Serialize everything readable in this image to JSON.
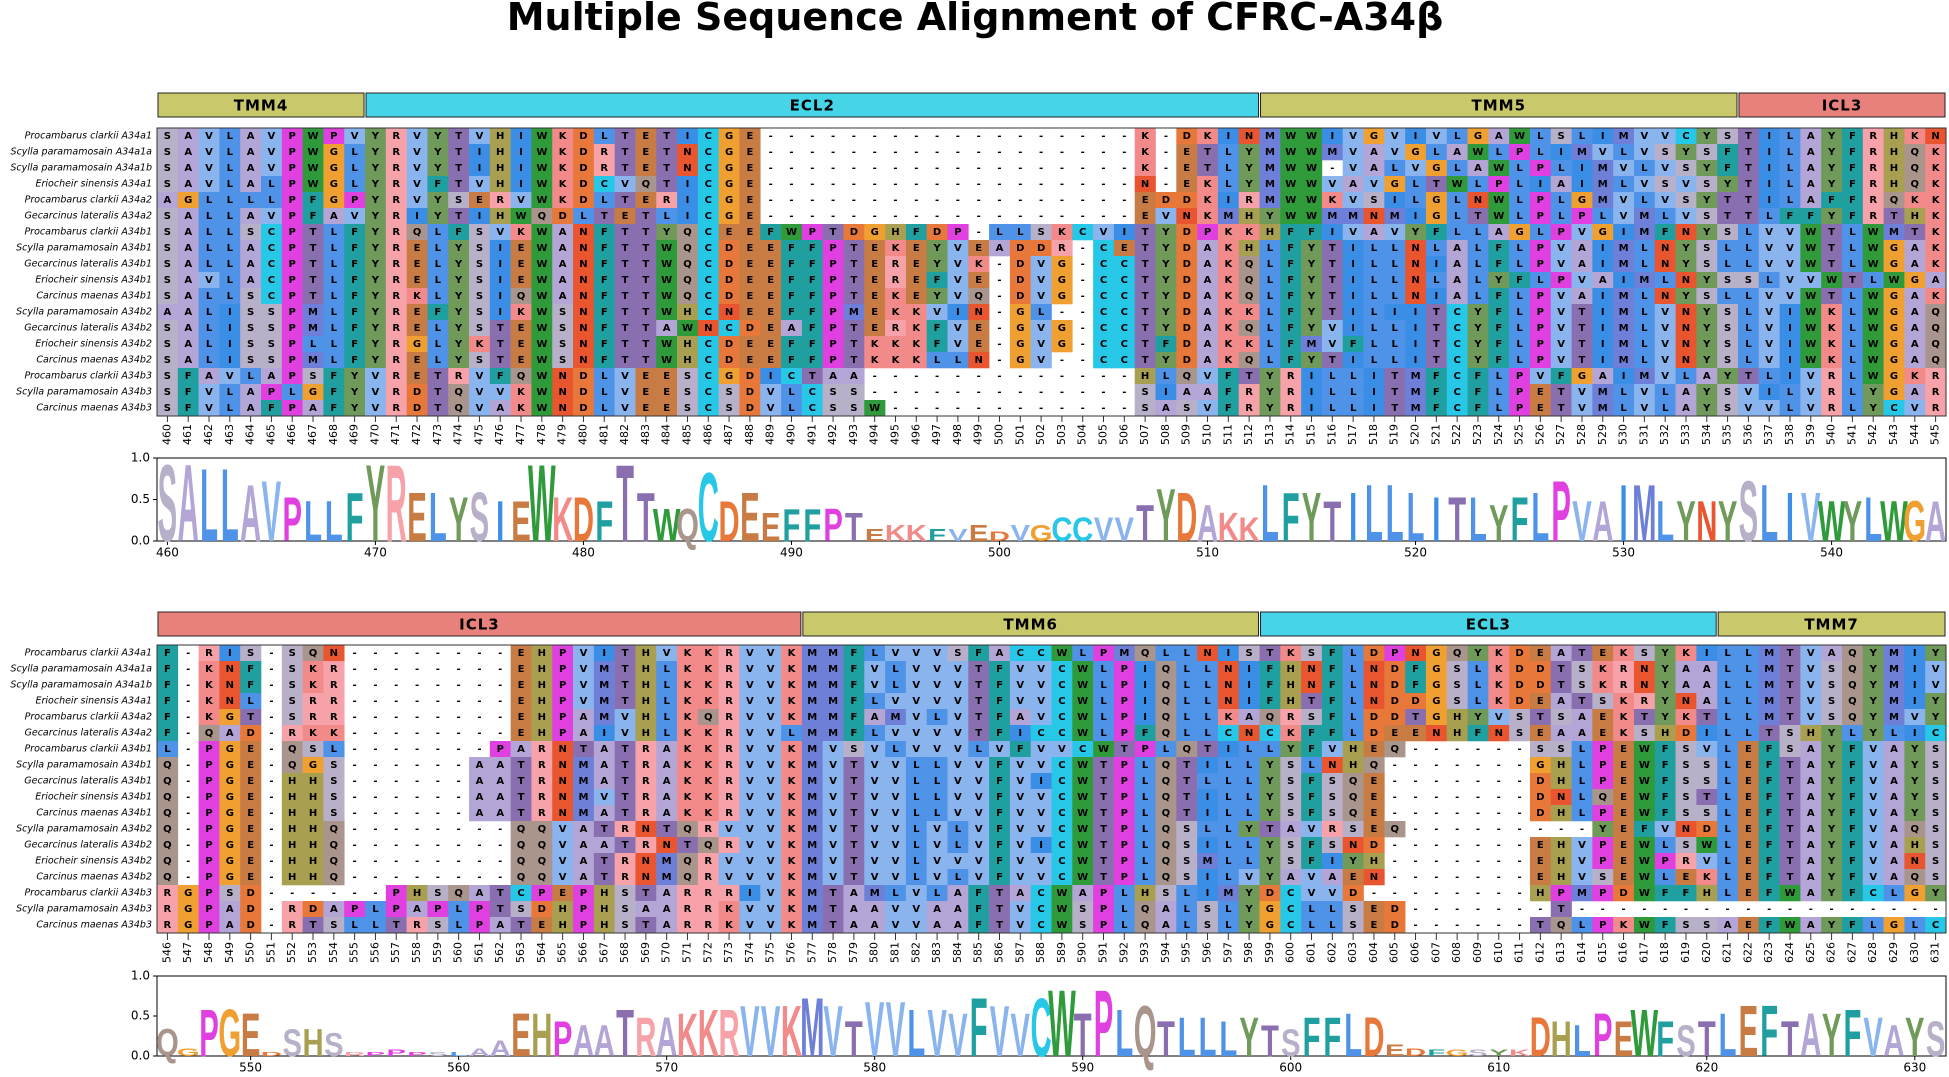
{
  "title": "Multiple Sequence Alignment of CFRC-A34β",
  "sequence_names": [
    "Procambarus clarkii A34a1",
    "Scylla paramamosain A34a1a",
    "Scylla paramamosain A34a1b",
    "Eriocheir sinensis A34a1",
    "Procambarus clarkii A34a2",
    "Gecarcinus lateralis A34a2",
    "Procambarus clarkii A34b1",
    "Scylla paramamosain A34b1",
    "Gecarcinus lateralis A34b1",
    "Eriocheir sinensis A34b1",
    "Carcinus maenas A34b1",
    "Scylla paramamosain A34b2",
    "Gecarcinus lateralis A34b2",
    "Eriocheir sinensis A34b2",
    "Carcinus maenas A34b2",
    "Procambarus clarkii A34b3",
    "Scylla paramamosain A34b3",
    "Carcinus maenas A34b3"
  ],
  "residue_colors": {
    "A": "#b3a6d6",
    "R": "#f7a1a8",
    "N": "#e8552e",
    "D": "#e8783a",
    "C": "#27c7e8",
    "Q": "#a9958c",
    "E": "#c97b44",
    "G": "#f0a030",
    "H": "#a8a050",
    "I": "#3a8ee6",
    "L": "#4f93e8",
    "K": "#f28a8a",
    "M": "#6e7fd8",
    "F": "#1f9f9f",
    "P": "#e040e0",
    "S": "#b8b0c8",
    "T": "#8a6fb0",
    "W": "#2f9a3a",
    "Y": "#6f9a5a",
    "V": "#8ab4ee"
  },
  "panels": [
    {
      "regions": [
        {
          "label": "TMM4",
          "start": 460,
          "end": 469,
          "color": "#c9c86a"
        },
        {
          "label": "ECL2",
          "start": 470,
          "end": 512,
          "color": "#45d4e8"
        },
        {
          "label": "TMM5",
          "start": 513,
          "end": 535,
          "color": "#c9c86a"
        },
        {
          "label": "ICL3",
          "start": 536,
          "end": 545,
          "color": "#e8807c"
        }
      ],
      "positions": [
        460,
        461,
        462,
        463,
        464,
        465,
        466,
        467,
        468,
        469,
        470,
        471,
        472,
        473,
        474,
        475,
        476,
        477,
        478,
        479,
        480,
        481,
        482,
        483,
        484,
        485,
        486,
        487,
        488,
        489,
        490,
        491,
        492,
        493,
        494,
        495,
        496,
        497,
        498,
        499,
        500,
        501,
        502,
        503,
        504,
        505,
        506,
        507,
        508,
        509,
        510,
        511,
        512,
        513,
        514,
        515,
        516,
        517,
        518,
        519,
        520,
        521,
        522,
        523,
        524,
        525,
        526,
        527,
        528,
        529,
        530,
        531,
        532,
        533,
        534,
        535,
        536,
        537,
        538,
        539,
        540,
        541,
        542,
        543,
        544,
        545
      ],
      "rows": [
        "SAVLAVPWPVYRVYTVHIWKDLTETICGE------------------K-DKINMWWIVGVIVLGAWLSLIMVVCYSTILAYFRHKN",
        "SAVLAVPWGLYRVYTIHIWKDRTETNCGE------------------K-ETLYMWWMVAVGLAWLPLIMVLVSYSFTILAYFRHQK",
        "SAVLAVPWGLYRVYTIHIWKDRTETNCGE------------------K-ETLYMWW-VALVGLAWLPLIMVLVSYFTILAYFRHQK",
        "SAVLALPWGLYRVFTVHIWKDCVQTICGE------------------N-EKLYMWWVAVGLTWLPLIAIMLVSVSYTILAYFRHQK",
        "AGLLLLPFGPYRVYSERVWKDLTERICGE------------------EDDKIRMWWKVSILGLNWLPLGMVLVSYTTILAFFRQKK",
        "SALLAVPFAVYRIYTIHWQDLTETLICGE------------------EVNKMHYWWMMNMIGLTWLPLPLVMLVSTTLFFYFRTHK",
        "SALLSCPTLFYRQLFSVKWANFTTYQCEEFWPTDGHFDP-LLSKCVITYDPKKHFFIVAVYFLLAGLPVGIMFNYSLVVWTLWMTK",
        "SALLACPTLFYRELYSIEWANFTTWQCDEEFFPTEKEYVEADDR-CETYDAKHLFYTILLNLALFLPVAIMLNYSLLVVWTLWGAK",
        "SALLACPTLFYRELYSIEWANFTTWQCDEEFFPTEREYVK-DVG-CCTYDAKQLFYTILLNIALFLPVAIMLNYSLLVVWTLWGAK",
        "SAVLACPTLFYRELYSIEWANFTTWQCDEEFFPTEREFVE-DVG-CCTYDAKQLFYTILLNLALYFLPVAIMLNYSSLVVWTLWGA",
        "SALLSCPTLFYRKLYSIQWANFTTWQCDEEFFPTEKEYVQ-DVG-CCTYDAKQLFYTILLNIALFLPVAIMLNYSLLVVWTLWGAK",
        "AALISSPMLFYREFYSIKWSNFTTWHCNEEFFPMEKKVIN-GL--CCTYDAKKLFYTILIITCYFLPVTIMLVNYSLVIWKLWGAQ",
        "SALISSPMLFYRELYSTEWSNFTTAWNCDEAFPTERKFVE-GVG-CCTYDAKQLFYVILLITCYFLPVTIMLVNYSLVIWKLWGAQ",
        "SALISSPLLFYRGLYKTEWSNFTTWHCDEEFFPTKKKFVE-GVG-CCTFDAKKLFMVFLLITCYFLPVTIMLVNYSLVIWKLWGAQ",
        "SALISSPMLFYRELYSTEWSNFTTWHCDEEFFPTKKKLLN-GV--CCTYDAKQLFYTILLITCYFLPVTIMLVNYSLVIWKLWGAQ",
        "SFAVLAPSFYVRETRVFQWNDLVEESCGDICTAA-------------HLQVFTYRILLITMFCFLPVFGAIMVLAYTLIVRLWGKR",
        "SFVLAPLGFYVRDTQVVKWNDLVEESCSDVLCSS-------------SIAAFRYRILLITMFCFLPETVMLVLAYSVILVRLYGAR",
        "SFVLAFPAFYVRDTQVAKWNDLVEESCSDVLCSSW------------SASVFRYRILLITMFCFLPETVMLVLAYSVVLVRLYCVR"
      ],
      "logo": {
        "ylim": [
          0,
          1
        ],
        "yticks": [
          {
            "value": 0,
            "label": "0.0"
          },
          0.5,
          {
            "value": 1,
            "label": "1.0"
          }
        ],
        "xticks": [
          460,
          470,
          480,
          490,
          500,
          510,
          520,
          530,
          540
        ],
        "letters": [
          "S",
          "A",
          "L",
          "L",
          "A",
          "V",
          "P",
          "L",
          "L",
          "F",
          "Y",
          "R",
          "E",
          "L",
          "Y",
          "S",
          "I",
          "E",
          "W",
          "K",
          "D",
          "F",
          "T",
          "T",
          "W",
          "Q",
          "C",
          "D",
          "E",
          "E",
          "F",
          "F",
          "P",
          "T",
          "E",
          "K",
          "K",
          "F",
          "V",
          "E",
          "D",
          "V",
          "G",
          "C",
          "C",
          "V",
          "V",
          "T",
          "Y",
          "D",
          "A",
          "K",
          "K",
          "L",
          "F",
          "Y",
          "T",
          "I",
          "L",
          "L",
          "L",
          "I",
          "T",
          "L",
          "Y",
          "F",
          "L",
          "P",
          "V",
          "A",
          "I",
          "M",
          "L",
          "Y",
          "N",
          "Y",
          "S",
          "L",
          "I",
          "V",
          "W",
          "Y",
          "L",
          "W",
          "G",
          "A"
        ],
        "heights": [
          0.95,
          0.95,
          0.9,
          0.9,
          0.7,
          0.75,
          0.55,
          0.5,
          0.5,
          0.6,
          0.95,
          0.95,
          0.6,
          0.6,
          0.55,
          0.6,
          0.5,
          0.5,
          0.95,
          0.55,
          0.55,
          0.5,
          0.95,
          0.6,
          0.4,
          0.4,
          0.85,
          0.5,
          0.6,
          0.35,
          0.4,
          0.4,
          0.4,
          0.35,
          0.15,
          0.2,
          0.2,
          0.15,
          0.15,
          0.2,
          0.12,
          0.2,
          0.2,
          0.3,
          0.3,
          0.3,
          0.3,
          0.45,
          0.65,
          0.6,
          0.45,
          0.35,
          0.3,
          0.7,
          0.6,
          0.6,
          0.5,
          0.6,
          0.7,
          0.7,
          0.6,
          0.55,
          0.55,
          0.55,
          0.45,
          0.55,
          0.6,
          0.75,
          0.5,
          0.5,
          0.7,
          0.7,
          0.5,
          0.5,
          0.5,
          0.5,
          0.75,
          0.7,
          0.6,
          0.6,
          0.5,
          0.5,
          0.55,
          0.5,
          0.5,
          0.5
        ]
      }
    },
    {
      "regions": [
        {
          "label": "ICL3",
          "start": 546,
          "end": 576,
          "color": "#e8807c"
        },
        {
          "label": "TMM6",
          "start": 577,
          "end": 598,
          "color": "#c9c86a"
        },
        {
          "label": "ECL3",
          "start": 599,
          "end": 620,
          "color": "#45d4e8"
        },
        {
          "label": "TMM7",
          "start": 621,
          "end": 631,
          "color": "#c9c86a"
        }
      ],
      "positions": [
        546,
        547,
        548,
        549,
        550,
        551,
        552,
        553,
        554,
        555,
        556,
        557,
        558,
        559,
        560,
        561,
        562,
        563,
        564,
        565,
        566,
        567,
        568,
        569,
        570,
        571,
        572,
        573,
        574,
        575,
        576,
        577,
        578,
        579,
        580,
        581,
        582,
        583,
        584,
        585,
        586,
        587,
        588,
        589,
        590,
        591,
        592,
        593,
        594,
        595,
        596,
        597,
        598,
        599,
        600,
        601,
        602,
        603,
        604,
        605,
        606,
        607,
        608,
        609,
        610,
        611,
        612,
        613,
        614,
        615,
        616,
        617,
        618,
        619,
        620,
        621,
        622,
        623,
        624,
        625,
        626,
        627,
        628,
        629,
        630,
        631
      ],
      "rows": [
        "F-RIS-SQN--------EHPVITHVKKRVVKMMFLVVVSFACCWLPMQLLNISTKSFLDPNGQYKDEATEKSYKILLMTVAQYMIY",
        "F-KNF-SKR--------EHPVMTHLKKRVVKMMFVLVVVTFVVCWLPIQLLNIFHNFLNDFGSLKDDTSKRNYAALLMTVSQYMIV",
        "F-KNF-SKR--------EHPVMTHLKKRVVKMMFVLVVVTFVVCWLPIQLLNIFHNFLNDFGSLKDDTSKRNYAALLMTVSQYMIV",
        "F-KNL-SRR--------EHPVMTHLKKRVVKMMFLVVVVTFVVCWLPIQLLNIFHTFLNDDGSLKDEATSKRYNALLMTVSQYMIY",
        "F-KGT-SRR--------EHPAMVHLKQRVVKMMFAMVLVTFAVCWLPIQLLKAQRSFLDDTGHYVSTSAEKTYKTLLMTVSQYMVY",
        "F-QAD-RKK--------EHPAIVHLKKRVVLMMFLVVVVTFICCWLPFQLLCNCKFFLDEENHFNSEAAEKSHDILLTSHYLYLIC",
        "L-PGE-QSL-------PARNTATRAKKRVVKMVSVLVVVLVFVVCWTPLQTILLYFVHEQ------SSLPEWFSVLEFSAYFVAYS",
        "Q-PGE-QGS------AATRNMATRAKKRVVKMVTVVLLVVFVVCWTPLQTILLYSLNHQ-------GHLPEWFSSLEFTAYFVAYS",
        "Q-PGE-HHS------AATRNMATRAKKRVVKMVTVVLLVVFVICWTPLQTLLLYSFSQE-------DHLPEWFSSLEFTAYFVAYS",
        "Q-PGE-HHS------AATRNMVTRAKKRVVKMVTVVLLVVFVVCWTPLQTILLYSFSQE-------DNLQEWFSTLEFTAYFVAYS",
        "Q-PGE-HHS------AATRNMATRAKKRVVKMVTVVLLVVFVVCWTPLQTILLYSFSQE-------DHLPEWFSSLEFTAYFVAYS",
        "Q-PGE-HHQ--------QQVATRNTQRVVVKMVTVVLVLVFVVCWTPLQSLLYTAVRSEQ---------YEFVNDLEFTAYFVAQS",
        "Q-PGE-HHQ--------QQVAATRNTQRVVKMVTVVLVLVFVICWTPLQSILLYSFSND-------EHVPEWLSWLEFTAYFVAHS",
        "Q-PGE-HHQ--------QQVATRNMQRVVVKMVTVVLVVVFVVCWTPLQSMLLYSFIYH-------EHVPEWPRVLEFTAYFVANS",
        "Q-PGE-HHQ--------QQVATRNMQRVVVKMVTVVLVLVFVVCWTPLQSILVYAVAEN-------EHVSEWLEKLEFTAYFVAQS",
        "RGPSD------PHSQATCPEPHSTARRRIVKMTAMLVLAFTACWAPLHSLIMYDCVVD--------HPMPDWFFHLEFWAYFCLGY",
        "RGPAD-RDAPLPAPLPTSDHPHSAARRKVVKMTAAVVAAFTVCWSPLQALSLYGCLLSED-------T------------------",
        "RGPAD-RTSLLTRSLPATEHPHSTARRKVVKMTAAVVAAFTVCWSPLQALSLYGCLLSED------TQLPKWFSSAEFWAYFLGLC"
      ],
      "logo": {
        "ylim": [
          0,
          1
        ],
        "yticks": [
          {
            "value": 0,
            "label": "0.0"
          },
          0.5,
          {
            "value": 1,
            "label": "1.0"
          }
        ],
        "xticks": [
          550,
          560,
          570,
          580,
          590,
          600,
          610,
          620,
          630
        ],
        "letters": [
          "Q",
          "G",
          "P",
          "G",
          "E",
          "D",
          "S",
          "H",
          "S",
          "R",
          "P",
          "P",
          "P",
          "S",
          "L",
          "A",
          "A",
          "E",
          "H",
          "P",
          "A",
          "A",
          "T",
          "R",
          "A",
          "K",
          "K",
          "R",
          "V",
          "V",
          "K",
          "M",
          "V",
          "T",
          "V",
          "V",
          "L",
          "V",
          "V",
          "F",
          "V",
          "V",
          "C",
          "W",
          "T",
          "P",
          "L",
          "Q",
          "T",
          "L",
          "L",
          "L",
          "Y",
          "T",
          "S",
          "F",
          "F",
          "L",
          "D",
          "E",
          "D",
          "F",
          "G",
          "S",
          "Y",
          "K",
          "D",
          "H",
          "L",
          "P",
          "E",
          "W",
          "F",
          "S",
          "T",
          "L",
          "E",
          "F",
          "T",
          "A",
          "Y",
          "F",
          "V",
          "A",
          "Y",
          "S"
        ],
        "heights": [
          0.35,
          0.1,
          0.6,
          0.6,
          0.55,
          0.05,
          0.35,
          0.35,
          0.3,
          0.05,
          0.05,
          0.08,
          0.05,
          0.05,
          0.05,
          0.1,
          0.2,
          0.55,
          0.55,
          0.45,
          0.4,
          0.4,
          0.6,
          0.5,
          0.5,
          0.55,
          0.6,
          0.6,
          0.65,
          0.65,
          0.65,
          0.75,
          0.65,
          0.45,
          0.7,
          0.7,
          0.6,
          0.6,
          0.55,
          0.75,
          0.65,
          0.55,
          0.75,
          0.85,
          0.55,
          0.85,
          0.6,
          0.65,
          0.45,
          0.5,
          0.5,
          0.45,
          0.5,
          0.4,
          0.35,
          0.5,
          0.5,
          0.55,
          0.5,
          0.15,
          0.1,
          0.08,
          0.08,
          0.08,
          0.08,
          0.08,
          0.5,
          0.45,
          0.4,
          0.55,
          0.45,
          0.6,
          0.45,
          0.4,
          0.45,
          0.55,
          0.65,
          0.65,
          0.45,
          0.55,
          0.55,
          0.6,
          0.5,
          0.4,
          0.5,
          0.45
        ]
      }
    }
  ]
}
